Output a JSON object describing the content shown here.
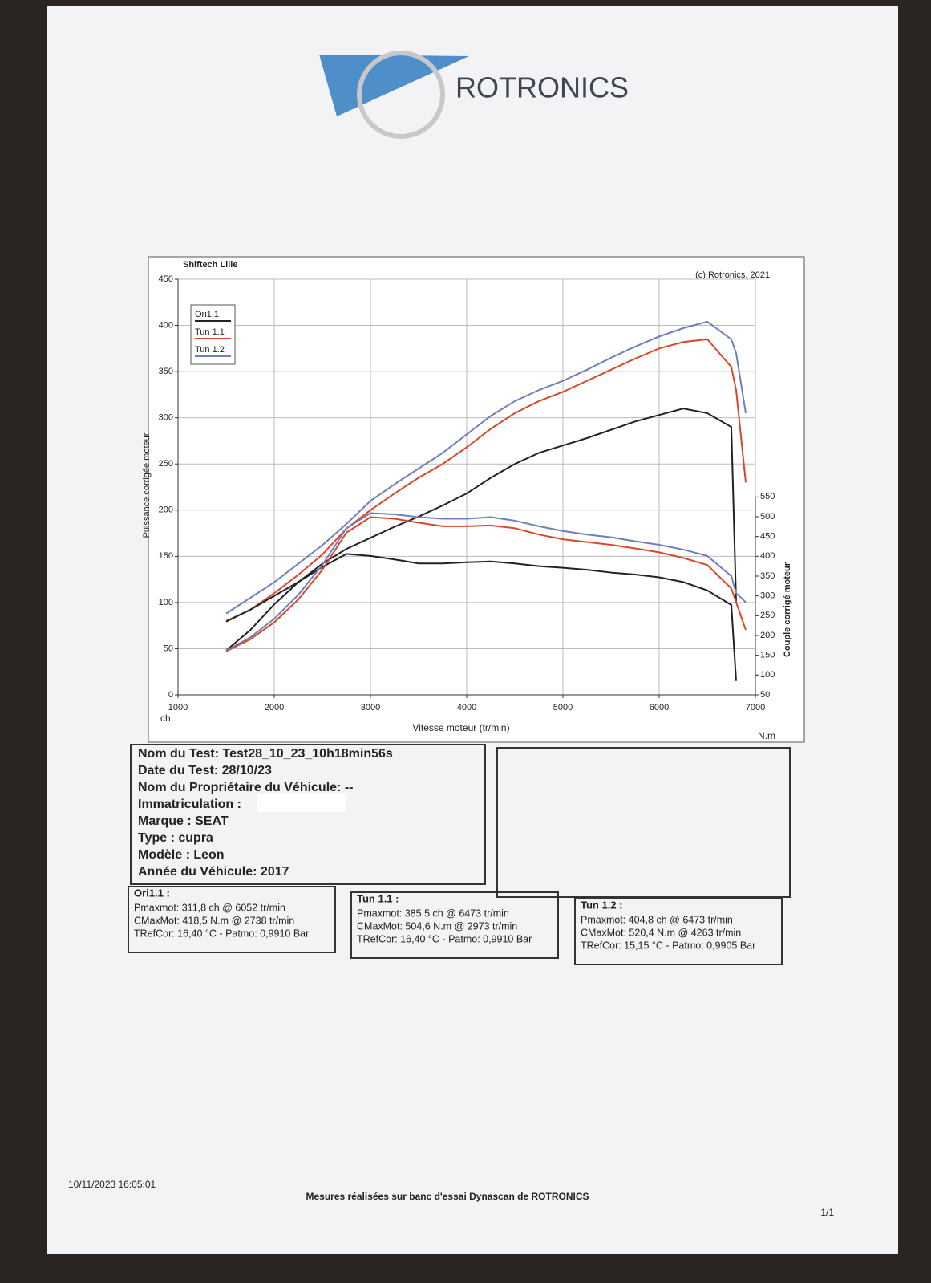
{
  "header": {
    "logo_text": "ROTRONICS"
  },
  "chart_data": {
    "type": "line",
    "top_left_label": "Shiftech Lille",
    "top_right_label": "(c) Rotronics, 2021",
    "xlabel": "Vitesse moteur (tr/min)",
    "ylabel": "Puissance corrigée moteur",
    "y2label": "Couple corrigé moteur",
    "y_unit": "ch",
    "y2_unit": "N.m",
    "x": [
      1500,
      1750,
      2000,
      2250,
      2500,
      2750,
      3000,
      3250,
      3500,
      3750,
      4000,
      4250,
      4500,
      4750,
      5000,
      5250,
      5500,
      5750,
      6000,
      6250,
      6500,
      6750,
      6800,
      6900
    ],
    "xlim": [
      1000,
      7000
    ],
    "xticks": [
      1000,
      2000,
      3000,
      4000,
      5000,
      6000,
      7000
    ],
    "ylim": [
      0,
      450
    ],
    "yticks": [
      0,
      50,
      100,
      150,
      200,
      250,
      300,
      350,
      400,
      450
    ],
    "y2lim": [
      50,
      1100
    ],
    "y2ticks": [
      50,
      100,
      150,
      200,
      250,
      300,
      350,
      400,
      450,
      500,
      550
    ],
    "grid": true,
    "legend": "top-left",
    "series": [
      {
        "name": "Ori1.1",
        "color": "#222222",
        "values": [
          48,
          70,
          98,
          122,
          142,
          158,
          170,
          182,
          193,
          205,
          218,
          235,
          250,
          262,
          270,
          278,
          287,
          296,
          303,
          310,
          305,
          290,
          100,
          null
        ]
      },
      {
        "name": "Tun 1.1",
        "color": "#d9472b",
        "values": [
          80,
          92,
          110,
          130,
          152,
          180,
          200,
          218,
          235,
          250,
          268,
          288,
          305,
          318,
          328,
          340,
          352,
          364,
          375,
          382,
          385,
          355,
          330,
          230
        ]
      },
      {
        "name": "Tun 1.2",
        "color": "#6f7fb8",
        "values": [
          88,
          105,
          122,
          142,
          162,
          185,
          210,
          228,
          245,
          262,
          282,
          302,
          318,
          330,
          340,
          352,
          365,
          377,
          388,
          397,
          404,
          385,
          370,
          305
        ]
      },
      {
        "color": "#222222",
        "axis": "y2",
        "values": [
          235,
          265,
          300,
          335,
          373,
          406,
          401,
          392,
          382,
          382,
          385,
          387,
          382,
          375,
          371,
          366,
          359,
          354,
          347,
          335,
          314,
          277,
          85,
          null
        ]
      },
      {
        "color": "#d9472b",
        "axis": "y2",
        "values": [
          160,
          190,
          233,
          291,
          366,
          460,
          499,
          495,
          485,
          476,
          476,
          478,
          471,
          455,
          443,
          436,
          429,
          420,
          410,
          396,
          378,
          319,
          284,
          214
        ]
      },
      {
        "color": "#6f7fb8",
        "axis": "y2",
        "values": [
          162,
          195,
          242,
          303,
          378,
          471,
          509,
          506,
          499,
          495,
          495,
          499,
          490,
          476,
          464,
          455,
          448,
          438,
          429,
          417,
          401,
          350,
          307,
          284
        ]
      }
    ]
  },
  "test_info": {
    "lines": [
      "Nom du Test: Test28_10_23_10h18min56s",
      "Date du Test: 28/10/23",
      "Nom du Propriétaire du Véhicule: --",
      "Immatriculation  :",
      "Marque  : SEAT",
      "Type  : cupra",
      "Modèle  : Leon",
      "Année du Véhicule: 2017"
    ]
  },
  "results": [
    {
      "title": "Ori1.1 :",
      "lines": [
        "Pmaxmot: 311,8 ch @ 6052 tr/min",
        "CMaxMot: 418,5 N.m @ 2738 tr/min",
        "TRefCor: 16,40 °C - Patmo: 0,9910 Bar"
      ]
    },
    {
      "title": "Tun 1.1 :",
      "lines": [
        "Pmaxmot: 385,5 ch @ 6473 tr/min",
        "CMaxMot: 504,6 N.m @ 2973 tr/min",
        "TRefCor: 16,40 °C - Patmo: 0,9910 Bar"
      ]
    },
    {
      "title": "Tun 1.2  :",
      "lines": [
        "Pmaxmot: 404,8 ch @ 6473 tr/min",
        "CMaxMot: 520,4 N.m @ 4263 tr/min",
        "TRefCor: 15,15 °C - Patmo: 0,9905 Bar"
      ]
    }
  ],
  "footer": {
    "timestamp": "10/11/2023 16:05:01",
    "note": "Mesures réalisées sur banc d'essai Dynascan de ROTRONICS",
    "page": "1/1"
  }
}
